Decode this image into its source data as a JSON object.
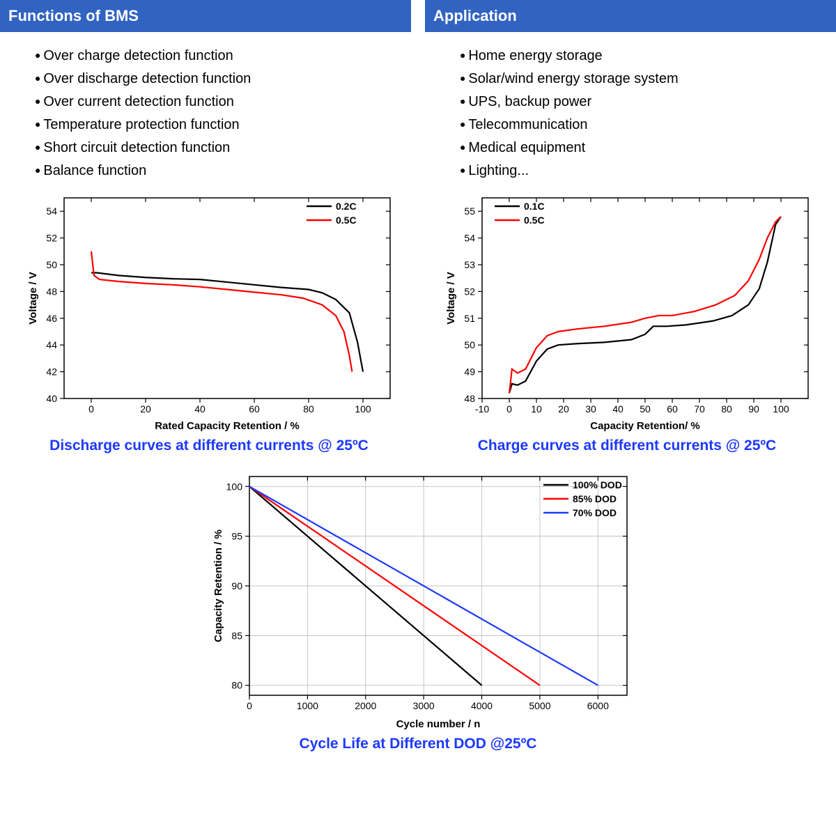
{
  "sections": {
    "left_header": "Functions of BMS",
    "right_header": "Application",
    "bms_items": [
      "Over charge detection function",
      "Over discharge detection function",
      "Over current detection function",
      "Temperature protection function",
      "Short circuit detection function",
      "Balance function"
    ],
    "app_items": [
      "Home energy storage",
      "Solar/wind energy storage system",
      "UPS, backup power",
      "Telecommunication",
      "Medical equipment",
      "Lighting..."
    ]
  },
  "discharge_chart": {
    "type": "line",
    "caption": "Discharge curves at different currents @ 25ºC",
    "xlabel": "Rated Capacity Retention / %",
    "ylabel": "Voltage / V",
    "xlim": [
      -10,
      110
    ],
    "ylim": [
      40,
      55
    ],
    "xticks": [
      0,
      20,
      40,
      60,
      80,
      100
    ],
    "yticks": [
      40,
      42,
      44,
      46,
      48,
      50,
      52,
      54
    ],
    "border_color": "#000000",
    "series": [
      {
        "name": "0.2C",
        "color": "#000000",
        "points": [
          [
            0,
            49.4
          ],
          [
            2,
            49.4
          ],
          [
            10,
            49.2
          ],
          [
            20,
            49.05
          ],
          [
            30,
            48.95
          ],
          [
            40,
            48.9
          ],
          [
            50,
            48.7
          ],
          [
            60,
            48.5
          ],
          [
            70,
            48.3
          ],
          [
            80,
            48.15
          ],
          [
            85,
            47.9
          ],
          [
            90,
            47.4
          ],
          [
            95,
            46.4
          ],
          [
            98,
            44.2
          ],
          [
            100,
            42.0
          ]
        ]
      },
      {
        "name": "0.5C",
        "color": "#ff0000",
        "points": [
          [
            0,
            51.0
          ],
          [
            1,
            49.2
          ],
          [
            3,
            48.9
          ],
          [
            10,
            48.75
          ],
          [
            20,
            48.6
          ],
          [
            30,
            48.5
          ],
          [
            40,
            48.35
          ],
          [
            50,
            48.15
          ],
          [
            60,
            47.95
          ],
          [
            70,
            47.75
          ],
          [
            78,
            47.5
          ],
          [
            85,
            47.0
          ],
          [
            90,
            46.2
          ],
          [
            93,
            45.0
          ],
          [
            95,
            43.2
          ],
          [
            96,
            42.0
          ]
        ]
      }
    ],
    "legend_pos": "top-right"
  },
  "charge_chart": {
    "type": "line",
    "caption": "Charge curves at different currents @ 25ºC",
    "xlabel": "Capacity Retention/ %",
    "ylabel": "Voltage / V",
    "xlim": [
      -10,
      110
    ],
    "ylim": [
      48,
      55.5
    ],
    "xticks": [
      -10,
      0,
      10,
      20,
      30,
      40,
      50,
      60,
      70,
      80,
      90,
      100
    ],
    "yticks": [
      48,
      49,
      50,
      51,
      52,
      53,
      54,
      55
    ],
    "border_color": "#000000",
    "series": [
      {
        "name": "0.1C",
        "color": "#000000",
        "points": [
          [
            0,
            48.2
          ],
          [
            1,
            48.55
          ],
          [
            3,
            48.5
          ],
          [
            6,
            48.65
          ],
          [
            10,
            49.4
          ],
          [
            14,
            49.85
          ],
          [
            18,
            50.0
          ],
          [
            25,
            50.05
          ],
          [
            35,
            50.1
          ],
          [
            45,
            50.2
          ],
          [
            50,
            50.4
          ],
          [
            53,
            50.7
          ],
          [
            58,
            50.7
          ],
          [
            65,
            50.75
          ],
          [
            75,
            50.9
          ],
          [
            82,
            51.1
          ],
          [
            88,
            51.5
          ],
          [
            92,
            52.1
          ],
          [
            95,
            53.1
          ],
          [
            98,
            54.5
          ],
          [
            100,
            54.8
          ]
        ]
      },
      {
        "name": "0.5C",
        "color": "#ff0000",
        "points": [
          [
            0,
            48.2
          ],
          [
            1,
            49.1
          ],
          [
            3,
            48.95
          ],
          [
            6,
            49.1
          ],
          [
            10,
            49.9
          ],
          [
            14,
            50.35
          ],
          [
            18,
            50.5
          ],
          [
            25,
            50.6
          ],
          [
            35,
            50.7
          ],
          [
            45,
            50.85
          ],
          [
            50,
            51.0
          ],
          [
            55,
            51.1
          ],
          [
            60,
            51.1
          ],
          [
            68,
            51.25
          ],
          [
            76,
            51.5
          ],
          [
            83,
            51.85
          ],
          [
            88,
            52.4
          ],
          [
            92,
            53.2
          ],
          [
            95,
            54.0
          ],
          [
            98,
            54.6
          ],
          [
            100,
            54.8
          ]
        ]
      }
    ],
    "legend_pos": "top-left"
  },
  "cycle_chart": {
    "type": "line",
    "caption": "Cycle Life at Different DOD @25ºC",
    "xlabel": "Cycle number / n",
    "ylabel": "Capacity Retention / %",
    "xlim": [
      0,
      6500
    ],
    "ylim": [
      79,
      101
    ],
    "xticks": [
      0,
      1000,
      2000,
      3000,
      4000,
      5000,
      6000
    ],
    "yticks": [
      80,
      85,
      90,
      95,
      100
    ],
    "border_color": "#000000",
    "grid_color": "#c0c0c0",
    "series": [
      {
        "name": "100% DOD",
        "color": "#000000",
        "points": [
          [
            0,
            100
          ],
          [
            4000,
            80
          ]
        ]
      },
      {
        "name": "85% DOD",
        "color": "#ff0000",
        "points": [
          [
            0,
            100
          ],
          [
            5000,
            80
          ]
        ]
      },
      {
        "name": "70% DOD",
        "color": "#1c39ff",
        "points": [
          [
            0,
            100
          ],
          [
            6000,
            80
          ]
        ]
      }
    ],
    "legend_pos": "top-right"
  },
  "colors": {
    "header_bg": "#3163c1",
    "header_fg": "#ffffff",
    "caption_color": "#1c39ff"
  }
}
